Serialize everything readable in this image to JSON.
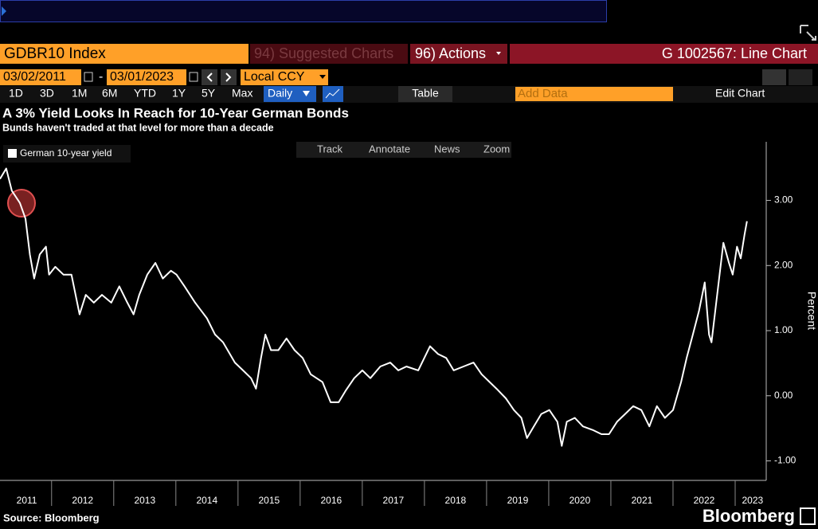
{
  "ui": {
    "ticker": "GDBR10 Index",
    "suggested": "94) Suggested Charts",
    "actions": "96) Actions",
    "chart_id": "G 1002567: Line Chart",
    "start_date": "03/02/2011",
    "date_sep": "-",
    "end_date": "03/01/2023",
    "currency": "Local CCY",
    "ranges": [
      "1D",
      "3D",
      "1M",
      "6M",
      "YTD",
      "1Y",
      "5Y",
      "Max"
    ],
    "frequency": "Daily",
    "table": "Table",
    "add_data": "Add Data",
    "edit_chart": "Edit Chart",
    "tools": [
      "Track",
      "Annotate",
      "News",
      "Zoom"
    ],
    "source": "Source: Bloomberg",
    "brand": "Bloomberg"
  },
  "chart_data": {
    "type": "line",
    "title": "A 3% Yield Looks In Reach for 10-Year German Bonds",
    "subtitle": "Bunds haven't traded at that level for more than a decade",
    "y_label": "Percent",
    "x": [
      2011.17,
      2011.27,
      2011.36,
      2011.49,
      2011.58,
      2011.65,
      2011.72,
      2011.81,
      2011.91,
      2011.96,
      2012.06,
      2012.19,
      2012.32,
      2012.45,
      2012.55,
      2012.68,
      2012.81,
      2012.96,
      2013.09,
      2013.22,
      2013.32,
      2013.41,
      2013.54,
      2013.67,
      2013.79,
      2013.92,
      2014.01,
      2014.14,
      2014.31,
      2014.5,
      2014.63,
      2014.76,
      2014.95,
      2015.08,
      2015.21,
      2015.29,
      2015.37,
      2015.44,
      2015.53,
      2015.65,
      2015.78,
      2015.91,
      2016.04,
      2016.17,
      2016.36,
      2016.49,
      2016.62,
      2016.74,
      2016.87,
      2017.0,
      2017.13,
      2017.29,
      2017.45,
      2017.58,
      2017.71,
      2017.9,
      2018.09,
      2018.22,
      2018.35,
      2018.47,
      2018.63,
      2018.79,
      2018.92,
      2019.05,
      2019.18,
      2019.31,
      2019.44,
      2019.56,
      2019.65,
      2019.76,
      2019.88,
      2020.01,
      2020.14,
      2020.21,
      2020.29,
      2020.42,
      2020.55,
      2020.72,
      2020.85,
      2020.97,
      2021.1,
      2021.23,
      2021.36,
      2021.49,
      2021.62,
      2021.74,
      2021.87,
      2022.0,
      2022.13,
      2022.22,
      2022.32,
      2022.42,
      2022.51,
      2022.58,
      2022.62,
      2022.71,
      2022.81,
      2022.9,
      2022.96,
      2023.03,
      2023.09,
      2023.15,
      2023.19
    ],
    "series": [
      {
        "name": "German 10-year yield",
        "color": "#ffffff",
        "values": [
          3.33,
          3.49,
          3.15,
          2.96,
          2.72,
          2.17,
          1.8,
          2.17,
          2.29,
          1.86,
          1.98,
          1.86,
          1.86,
          1.25,
          1.55,
          1.43,
          1.55,
          1.43,
          1.68,
          1.43,
          1.25,
          1.55,
          1.86,
          2.04,
          1.8,
          1.92,
          1.86,
          1.68,
          1.43,
          1.19,
          0.94,
          0.82,
          0.51,
          0.39,
          0.27,
          0.11,
          0.58,
          0.94,
          0.7,
          0.7,
          0.88,
          0.7,
          0.58,
          0.33,
          0.21,
          -0.1,
          -0.1,
          0.09,
          0.27,
          0.39,
          0.27,
          0.45,
          0.51,
          0.39,
          0.45,
          0.39,
          0.76,
          0.64,
          0.58,
          0.39,
          0.45,
          0.51,
          0.33,
          0.21,
          0.09,
          -0.04,
          -0.22,
          -0.34,
          -0.65,
          -0.47,
          -0.28,
          -0.22,
          -0.4,
          -0.77,
          -0.4,
          -0.34,
          -0.47,
          -0.53,
          -0.59,
          -0.59,
          -0.4,
          -0.28,
          -0.16,
          -0.22,
          -0.47,
          -0.16,
          -0.34,
          -0.22,
          0.21,
          0.58,
          0.94,
          1.31,
          1.74,
          0.94,
          0.82,
          1.55,
          2.35,
          2.04,
          1.86,
          2.29,
          2.11,
          2.47,
          2.68
        ]
      }
    ],
    "xlim": [
      2011.17,
      2023.5
    ],
    "xticks": [
      {
        "value": 2011.6,
        "label": "2011"
      },
      {
        "value": 2012.5,
        "label": "2012"
      },
      {
        "value": 2013.5,
        "label": "2013"
      },
      {
        "value": 2014.5,
        "label": "2014"
      },
      {
        "value": 2015.5,
        "label": "2015"
      },
      {
        "value": 2016.5,
        "label": "2016"
      },
      {
        "value": 2017.5,
        "label": "2017"
      },
      {
        "value": 2018.5,
        "label": "2018"
      },
      {
        "value": 2019.5,
        "label": "2019"
      },
      {
        "value": 2020.5,
        "label": "2020"
      },
      {
        "value": 2021.5,
        "label": "2021"
      },
      {
        "value": 2022.5,
        "label": "2022"
      },
      {
        "value": 2023.28,
        "label": "2023"
      }
    ],
    "xminor_ticks": [
      2012,
      2013,
      2014,
      2015,
      2016,
      2017,
      2018,
      2019,
      2020,
      2021,
      2022,
      2023
    ],
    "ylim": [
      -1.3,
      3.9
    ],
    "yticks": [
      {
        "value": 3,
        "label": "3.00"
      },
      {
        "value": 2,
        "label": "2.00"
      },
      {
        "value": 1,
        "label": "1.00"
      },
      {
        "value": 0,
        "label": "0.00"
      },
      {
        "value": -1,
        "label": "-1.00"
      }
    ]
  }
}
